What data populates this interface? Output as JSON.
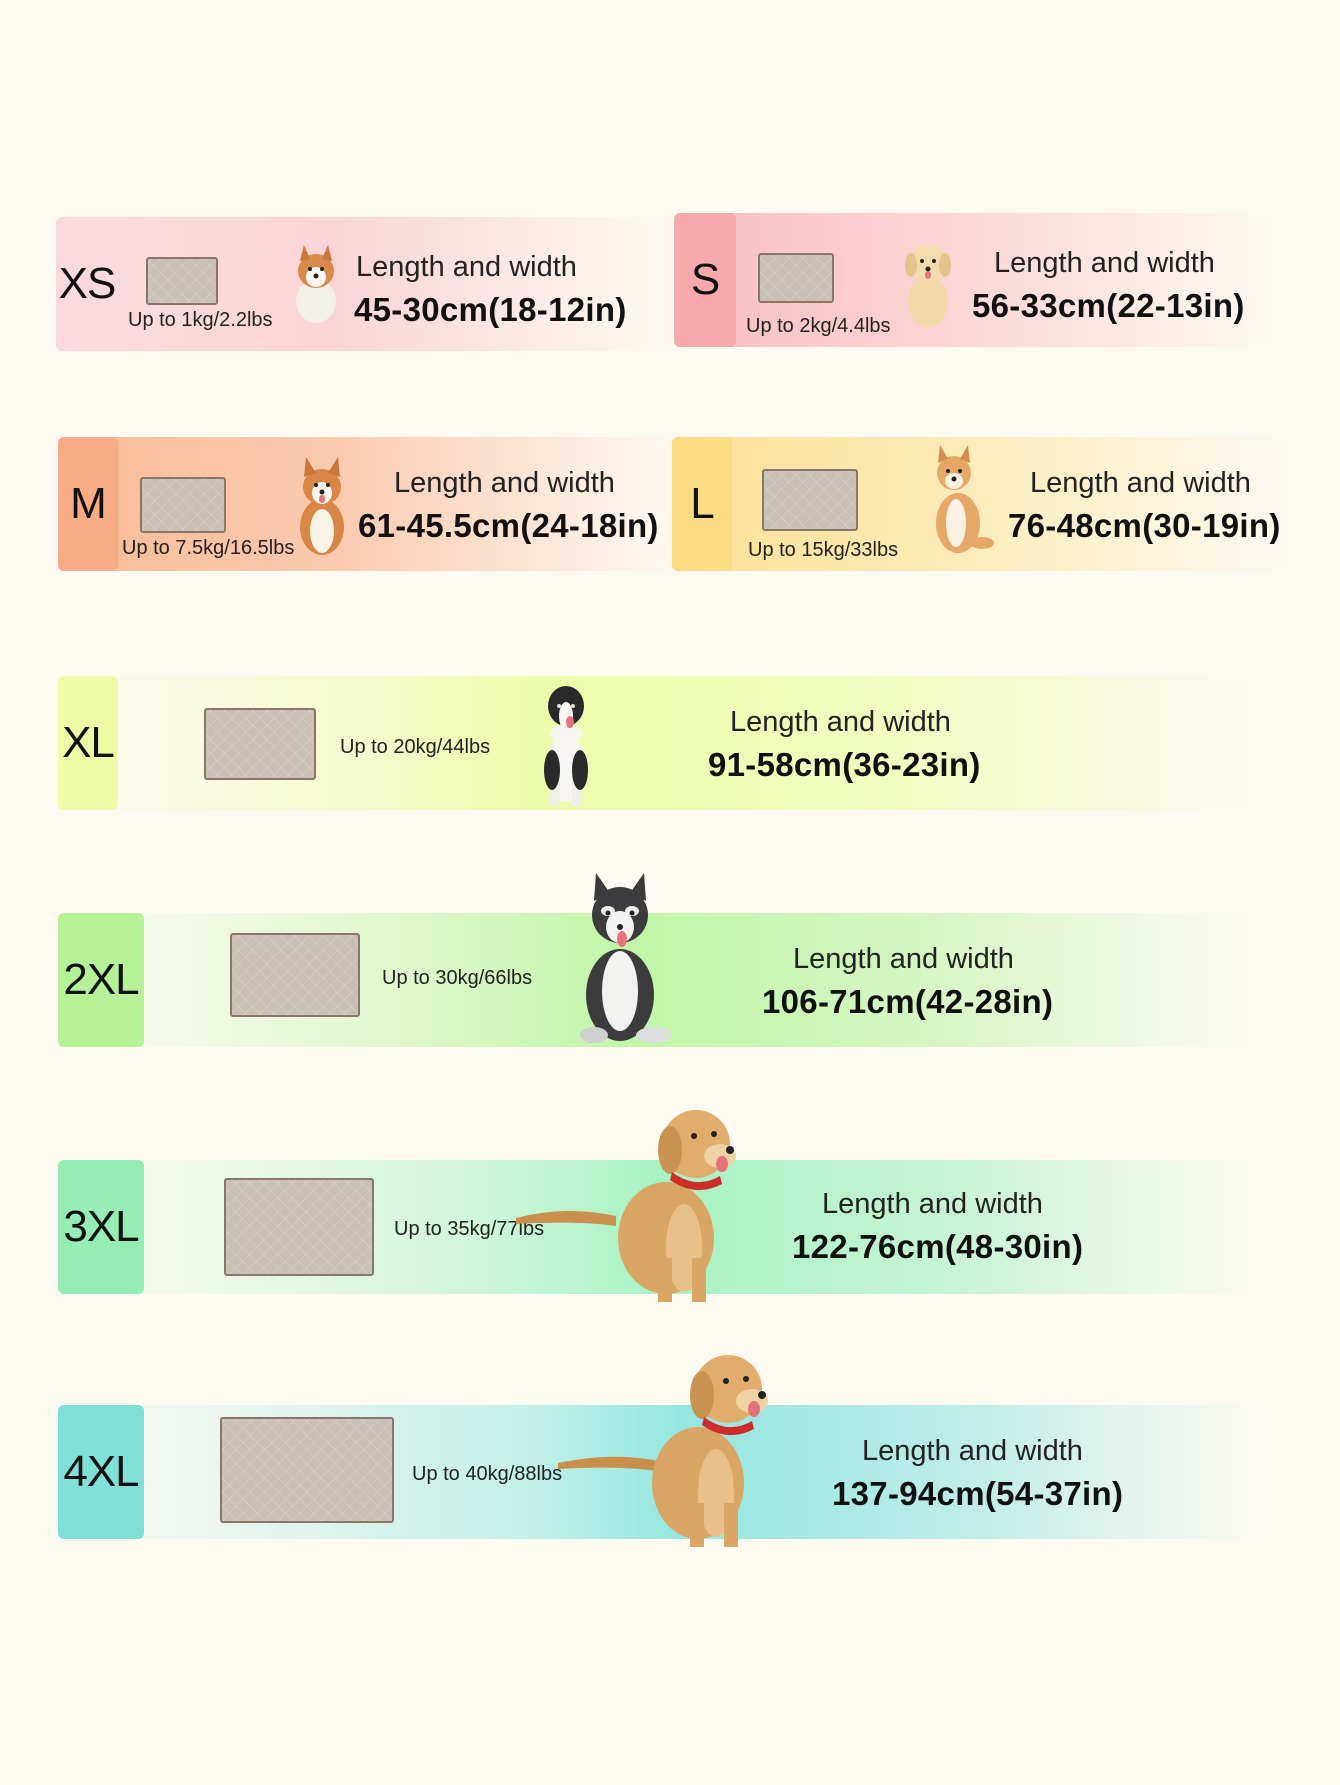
{
  "label": "Length and width",
  "sizes": [
    {
      "size": "XS",
      "weight": "Up to 1kg/2.2lbs",
      "dims": "45-30cm(18-12in)",
      "color": "#fbd9dc",
      "dog": "corgi-puppy-icon"
    },
    {
      "size": "S",
      "weight": "Up to 2kg/4.4lbs",
      "dims": "56-33cm(22-13in)",
      "color": "#f8b7b9",
      "dog": "golden-puppy-icon"
    },
    {
      "size": "M",
      "weight": "Up to 7.5kg/16.5lbs",
      "dims": "61-45.5cm(24-18in)",
      "color": "#f8b88f",
      "dog": "corgi-icon"
    },
    {
      "size": "L",
      "weight": "Up to 15kg/33lbs",
      "dims": "76-48cm(30-19in)",
      "color": "#fbdf8f",
      "dog": "shiba-icon"
    },
    {
      "size": "XL",
      "weight": "Up to 20kg/44lbs",
      "dims": "91-58cm(36-23in)",
      "color": "#eefca6",
      "dog": "border-collie-icon"
    },
    {
      "size": "2XL",
      "weight": "Up to 30kg/66lbs",
      "dims": "106-71cm(42-28in)",
      "color": "#bdf5a3",
      "dog": "husky-icon"
    },
    {
      "size": "3XL",
      "weight": "Up to 35kg/77lbs",
      "dims": "122-76cm(48-30in)",
      "color": "#a3f2c0",
      "dog": "golden-retriever-icon"
    },
    {
      "size": "4XL",
      "weight": "Up to 40kg/88lbs",
      "dims": "137-94cm(54-37in)",
      "color": "#8ee6df",
      "dog": "golden-retriever-icon"
    }
  ]
}
